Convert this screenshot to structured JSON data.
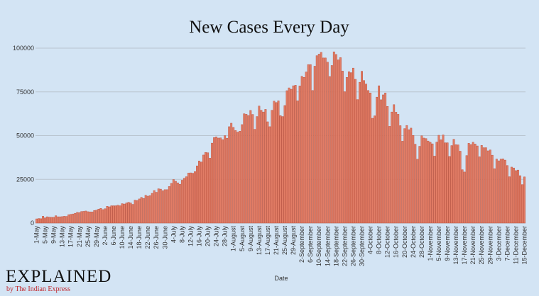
{
  "chart_data": {
    "type": "bar",
    "title": "New Cases Every Day",
    "x_label": "Date",
    "color": "#e27d66",
    "edge_color": "#c05540",
    "grid": true,
    "ylim": [
      0,
      100000
    ],
    "yticks": [
      0,
      25000,
      50000,
      75000,
      100000
    ],
    "categories": [
      "1-May",
      null,
      null,
      null,
      "5-May",
      null,
      null,
      null,
      "9-May",
      null,
      null,
      null,
      "13-May",
      null,
      null,
      null,
      "17-May",
      null,
      null,
      null,
      "21-May",
      null,
      null,
      null,
      "25-May",
      null,
      null,
      null,
      "29-May",
      null,
      null,
      null,
      "2-June",
      null,
      null,
      null,
      "6-June",
      null,
      null,
      null,
      "10-June",
      null,
      null,
      null,
      "14-June",
      null,
      null,
      null,
      "18-June",
      null,
      null,
      null,
      "22-June",
      null,
      null,
      null,
      "26-June",
      null,
      null,
      null,
      "30-June",
      null,
      null,
      null,
      "4-July",
      null,
      null,
      null,
      "8-July",
      null,
      null,
      null,
      "12-July",
      null,
      null,
      null,
      "16-July",
      null,
      null,
      null,
      "20-July",
      null,
      null,
      null,
      "24-July",
      null,
      null,
      null,
      "28-July",
      null,
      null,
      null,
      "1-August",
      null,
      null,
      null,
      "5-August",
      null,
      null,
      null,
      "9-August",
      null,
      null,
      null,
      "13-August",
      null,
      null,
      null,
      "17-August",
      null,
      null,
      null,
      "21-August",
      null,
      null,
      null,
      "25-August",
      null,
      null,
      null,
      "29-August",
      null,
      null,
      null,
      "2-September",
      null,
      null,
      null,
      "6-September",
      null,
      null,
      null,
      "10-September",
      null,
      null,
      null,
      "14-September",
      null,
      null,
      null,
      "18-September",
      null,
      null,
      null,
      "22-September",
      null,
      null,
      null,
      "26-September",
      null,
      null,
      null,
      "30-September",
      null,
      null,
      null,
      "4-October",
      null,
      null,
      null,
      "8-October",
      null,
      null,
      null,
      "12-October",
      null,
      null,
      null,
      "16-October",
      null,
      null,
      null,
      "20-October",
      null,
      null,
      null,
      "24-October",
      null,
      null,
      null,
      "28-October",
      null,
      null,
      null,
      "1-November",
      null,
      null,
      null,
      "5-November",
      null,
      null,
      null,
      "9-November",
      null,
      null,
      null,
      "13-November",
      null,
      null,
      null,
      "17-November",
      null,
      null,
      null,
      "21-November",
      null,
      null,
      null,
      "25-November",
      null,
      null,
      null,
      "29-November",
      null,
      null,
      null,
      "3-December",
      null,
      null,
      null,
      "7-December",
      null,
      null,
      null,
      "11-December",
      null,
      null,
      null,
      "15-December"
    ],
    "values": [
      2400,
      2600,
      2500,
      3900,
      3000,
      3600,
      3400,
      3300,
      3300,
      4200,
      3600,
      3600,
      3700,
      3900,
      3800,
      4800,
      5000,
      5200,
      5600,
      6100,
      6000,
      6600,
      6700,
      6900,
      6500,
      6400,
      6400,
      7200,
      7400,
      8000,
      8400,
      7700,
      8200,
      9600,
      9300,
      9900,
      9900,
      9900,
      10200,
      9900,
      11100,
      10900,
      11500,
      11900,
      11500,
      10700,
      13100,
      12900,
      13800,
      14700,
      14100,
      15900,
      15400,
      15700,
      17000,
      18600,
      17600,
      19600,
      19400,
      18500,
      19100,
      19100,
      20900,
      22700,
      24900,
      23900,
      23000,
      22200,
      24500,
      25600,
      26500,
      28600,
      28700,
      28500,
      29400,
      32700,
      35500,
      34900,
      38900,
      40400,
      40200,
      37100,
      45700,
      48900,
      49300,
      48600,
      48700,
      47700,
      50000,
      48500,
      55100,
      57100,
      54700,
      52900,
      52000,
      52500,
      56300,
      62500,
      62200,
      61500,
      64400,
      62100,
      53600,
      60900,
      66900,
      64500,
      63500,
      65000,
      57900,
      55100,
      64500,
      69700,
      68900,
      69900,
      61400,
      60900,
      67200,
      75700,
      77300,
      76500,
      78500,
      78800,
      69900,
      78400,
      83900,
      83300,
      86400,
      90600,
      90600,
      75800,
      89700,
      95700,
      96600,
      97600,
      94400,
      94400,
      92000,
      83800,
      90100,
      97900,
      96400,
      93300,
      94600,
      86900,
      75100,
      83300,
      86500,
      86000,
      88600,
      82200,
      70600,
      80500,
      86800,
      81500,
      79500,
      75800,
      74400,
      59900,
      61300,
      72000,
      78500,
      70500,
      73300,
      74400,
      66700,
      55300,
      63500,
      67700,
      63400,
      62200,
      55700,
      46800,
      54000,
      55800,
      53400,
      54300,
      50100,
      45100,
      36500,
      43900,
      49900,
      48600,
      48300,
      46900,
      46200,
      45300,
      38300,
      46300,
      50200,
      47600,
      50400,
      45900,
      45900,
      38100,
      44300,
      47900,
      44800,
      44700,
      41100,
      30500,
      29200,
      38600,
      45600,
      44900,
      46200,
      45200,
      44100,
      37900,
      44400,
      43100,
      43100,
      41300,
      41800,
      38800,
      31100,
      36600,
      35600,
      36600,
      36700,
      36000,
      32900,
      26500,
      32000,
      31500,
      30000,
      30300,
      27100,
      22000,
      26400
    ]
  },
  "logo": {
    "name": "EXPLAINED",
    "tagline": "by The Indian Express"
  }
}
